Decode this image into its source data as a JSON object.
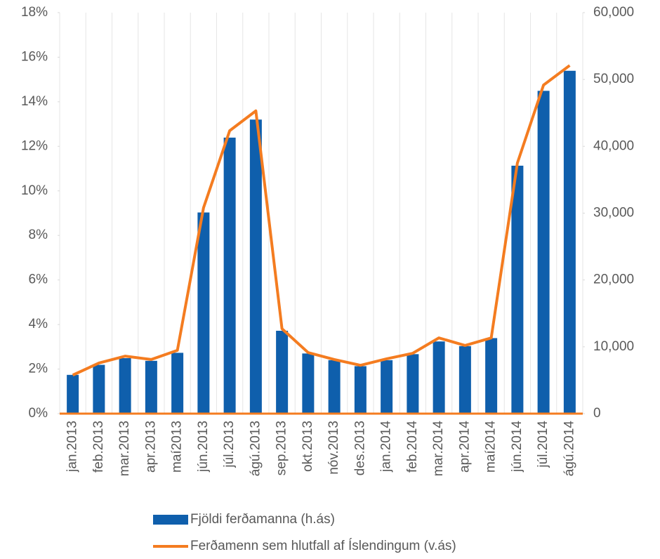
{
  "chart_data": {
    "type": "bar-line",
    "categories": [
      "jan.2013",
      "feb.2013",
      "mar.2013",
      "apr.2013",
      "maí2013",
      "jún.2013",
      "júl.2013",
      "ágú.2013",
      "sep.2013",
      "okt.2013",
      "nóv.2013",
      "des.2013",
      "jan.2014",
      "feb.2014",
      "mar.2014",
      "apr.2014",
      "maí2014",
      "jún.2014",
      "júl.2014",
      "ágú.2014"
    ],
    "series": [
      {
        "name": "Fjöldi ferðamanna (h.ás)",
        "type": "bar",
        "axis": "y2",
        "color": "#0f5fac",
        "values": [
          5800,
          7300,
          8300,
          7900,
          9100,
          30100,
          41300,
          44000,
          12400,
          9000,
          8000,
          7100,
          8000,
          8900,
          10800,
          10100,
          11300,
          37100,
          48300,
          51300
        ]
      },
      {
        "name": "Ferðamenn sem hlutfall af Íslendingum (v.ás)",
        "type": "line",
        "axis": "y",
        "color": "#f47c20",
        "values": [
          1.73,
          2.27,
          2.58,
          2.43,
          2.84,
          9.24,
          12.7,
          13.59,
          3.81,
          2.74,
          2.43,
          2.17,
          2.46,
          2.71,
          3.4,
          3.06,
          3.4,
          11.25,
          14.75,
          15.63
        ]
      }
    ],
    "ylim": [
      0,
      18
    ],
    "yticks": [
      {
        "value": 0,
        "label": "0%"
      },
      {
        "value": 2,
        "label": "2%"
      },
      {
        "value": 4,
        "label": "4%"
      },
      {
        "value": 6,
        "label": "6%"
      },
      {
        "value": 8,
        "label": "8%"
      },
      {
        "value": 10,
        "label": "10%"
      },
      {
        "value": 12,
        "label": "12%"
      },
      {
        "value": 14,
        "label": "14%"
      },
      {
        "value": 16,
        "label": "16%"
      },
      {
        "value": 18,
        "label": "18%"
      }
    ],
    "y2lim": [
      0,
      60000
    ],
    "y2ticks": [
      0,
      {
        "value": 10000,
        "label": "10,000"
      },
      {
        "value": 20000,
        "label": "20,000"
      },
      {
        "value": 30000,
        "label": "30,000"
      },
      {
        "value": 40000,
        "label": "40,000"
      },
      {
        "value": 50000,
        "label": "50,000"
      },
      {
        "value": 60000,
        "label": "60,000"
      }
    ],
    "legend": "bottom"
  }
}
